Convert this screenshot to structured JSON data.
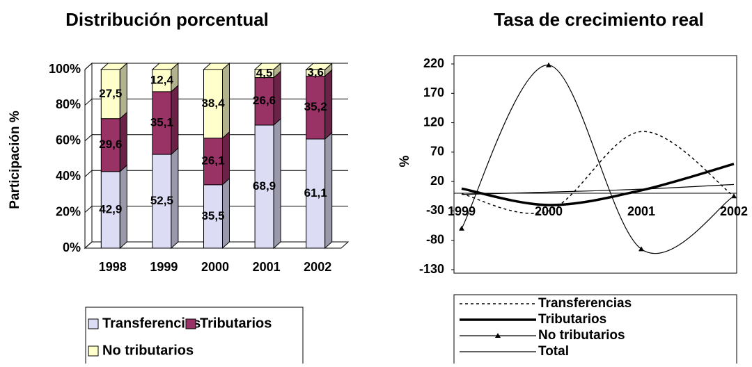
{
  "chart_data": [
    {
      "type": "bar3d_stacked",
      "title": "Distribución porcentual",
      "ylabel": "Participación %",
      "categories": [
        "1998",
        "1999",
        "2000",
        "2001",
        "2002"
      ],
      "series": [
        {
          "name": "Transferencias",
          "color": "#dcdcf5",
          "values": [
            42.9,
            52.5,
            35.5,
            68.9,
            61.1
          ],
          "value_labels": [
            "42,9",
            "52,5",
            "35,5",
            "68,9",
            "61,1"
          ]
        },
        {
          "name": "Tributarios",
          "color": "#993366",
          "values": [
            29.6,
            35.1,
            26.1,
            26.6,
            35.2
          ],
          "value_labels": [
            "29,6",
            "35,1",
            "26,1",
            "26,6",
            "35,2"
          ]
        },
        {
          "name": "No tributarios",
          "color": "#ffffcc",
          "values": [
            27.5,
            12.4,
            38.4,
            4.5,
            3.6
          ],
          "value_labels": [
            "27,5",
            "12,4",
            "38,4",
            "4,5",
            "3,6"
          ]
        }
      ],
      "ylim": [
        0,
        100
      ],
      "yticks": [
        {
          "value": 0,
          "label": "0%"
        },
        {
          "value": 20,
          "label": "20%"
        },
        {
          "value": 40,
          "label": "40%"
        },
        {
          "value": 60,
          "label": "60%"
        },
        {
          "value": 80,
          "label": "80%"
        },
        {
          "value": 100,
          "label": "100%"
        }
      ],
      "grid": true
    },
    {
      "type": "line",
      "title": "Tasa de crecimiento real",
      "ylabel": "%",
      "categories": [
        "1999",
        "2000",
        "2001",
        "2002"
      ],
      "series": [
        {
          "name": "Transferencias",
          "color": "#000000",
          "line_style": "dashed",
          "linewidth": 1.5,
          "values": [
            -1,
            -30,
            105,
            -5
          ]
        },
        {
          "name": "Tributarios",
          "color": "#000000",
          "line_style": "solid",
          "linewidth": 3.5,
          "values": [
            8,
            -20,
            5,
            50
          ]
        },
        {
          "name": "No tributarios",
          "color": "#000000",
          "line_style": "solid",
          "linewidth": 1.2,
          "marker": "triangle",
          "values": [
            -60,
            218,
            -95,
            -5
          ]
        },
        {
          "name": "Total",
          "color": "#000000",
          "line_style": "solid",
          "linewidth": 1.2,
          "values": [
            -2,
            2,
            7,
            15
          ]
        }
      ],
      "ylim": [
        -130,
        220
      ],
      "yticks": [
        -130,
        -80,
        -30,
        20,
        70,
        120,
        170,
        220
      ]
    }
  ]
}
